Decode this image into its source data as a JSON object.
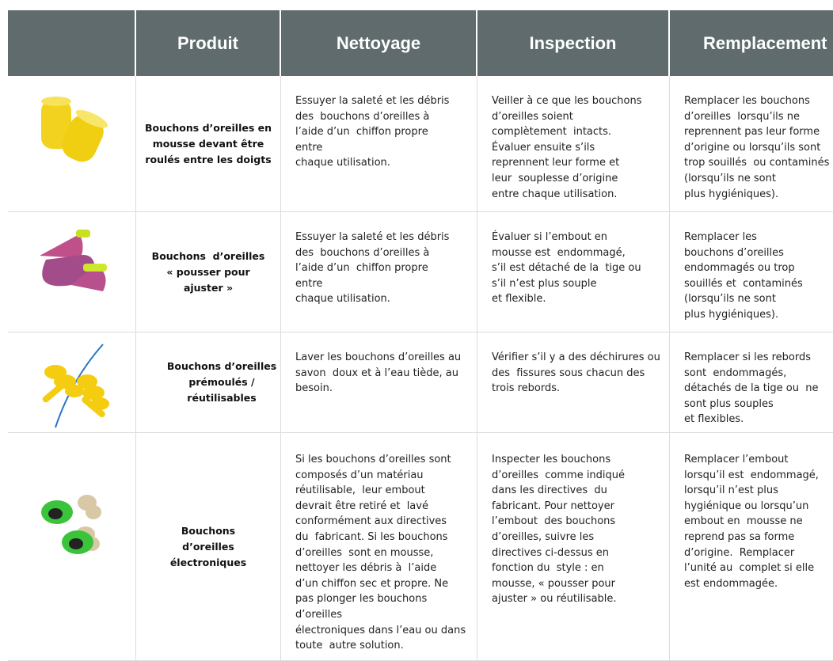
{
  "table": {
    "headers": [
      "Produit",
      "Nettoyage",
      "Inspection",
      "Remplacement"
    ],
    "rows": [
      {
        "product": [
          "Bouchons d’oreilles en",
          "mousse devant être",
          "roulés entre les doigts"
        ],
        "cleaning": [
          "Essuyer la saleté et les débris",
          "des  bouchons d’oreilles à",
          "l’aide d’un  chiffon propre",
          "entre",
          "chaque utilisation."
        ],
        "inspection": [
          "Veiller à ce que les bouchons",
          "d’oreilles soient",
          "complètement  intacts.",
          "Évaluer ensuite s’ils",
          "reprennent leur forme et",
          "leur  souplesse d’origine",
          "entre chaque utilisation."
        ],
        "replacement": [
          "Remplacer les bouchons",
          "d’oreilles  lorsqu’ils ne",
          "reprennent pas leur forme",
          "d’origine ou lorsqu’ils sont",
          "trop souillés  ou contaminés",
          "(lorsqu’ils ne sont",
          "plus hygiéniques)."
        ]
      },
      {
        "product": [
          "Bouchons  d’oreilles",
          "« pousser pour",
          "ajuster »"
        ],
        "cleaning": [
          "Essuyer la saleté et les débris",
          "des  bouchons d’oreilles à",
          "l’aide d’un  chiffon propre",
          "entre",
          "chaque utilisation."
        ],
        "inspection": [
          "Évaluer si l’embout en",
          "mousse est  endommagé,",
          "s’il est détaché de la  tige ou",
          "s’il n’est plus souple",
          "et flexible."
        ],
        "replacement": [
          "Remplacer les",
          "bouchons d’oreilles",
          "endommagés ou trop",
          "souillés et  contaminés",
          "(lorsqu’ils ne sont",
          "plus hygiéniques)."
        ]
      },
      {
        "product": [
          "Bouchons d’oreilles",
          "prémoulés /",
          "réutilisables"
        ],
        "cleaning": [
          "Laver les bouchons d’oreilles au",
          "savon  doux et à l’eau tiède, au",
          "besoin."
        ],
        "inspection": [
          "Vérifier s’il y a des déchirures ou",
          "des  fissures sous chacun des",
          "trois rebords."
        ],
        "replacement": [
          "Remplacer si les rebords",
          "sont  endommagés,",
          "détachés de la tige ou  ne",
          "sont plus souples",
          "et flexibles."
        ]
      },
      {
        "product": [
          "Bouchons",
          "d’oreilles",
          "électroniques"
        ],
        "cleaning": [
          "Si les bouchons d’oreilles sont",
          "composés d’un matériau",
          "réutilisable,  leur embout",
          "devrait être retiré et  lavé",
          "conformément aux directives",
          "du  fabricant. Si les bouchons",
          "d’oreilles  sont en mousse,",
          "nettoyer les débris à  l’aide",
          "d’un chiffon sec et propre. Ne",
          "pas plonger les bouchons",
          "d’oreilles",
          "électroniques dans l’eau ou dans",
          "toute  autre solution."
        ],
        "inspection": [
          "Inspecter les bouchons",
          "d’oreilles  comme indiqué",
          "dans les directives  du",
          "fabricant. Pour nettoyer",
          "l’embout  des bouchons",
          "d’oreilles, suivre les",
          "directives ci-dessus en",
          "fonction du  style : en",
          "mousse, « pousser pour",
          "ajuster » ou réutilisable."
        ],
        "replacement": [
          "Remplacer l’embout",
          "lorsqu’il est  endommagé,",
          "lorsqu’il n’est plus",
          "hygiénique ou lorsqu’un",
          "embout en  mousse ne",
          "reprend pas sa forme",
          "d’origine.  Remplacer",
          "l’unité au  complet si elle",
          "est endommagée."
        ]
      }
    ]
  }
}
